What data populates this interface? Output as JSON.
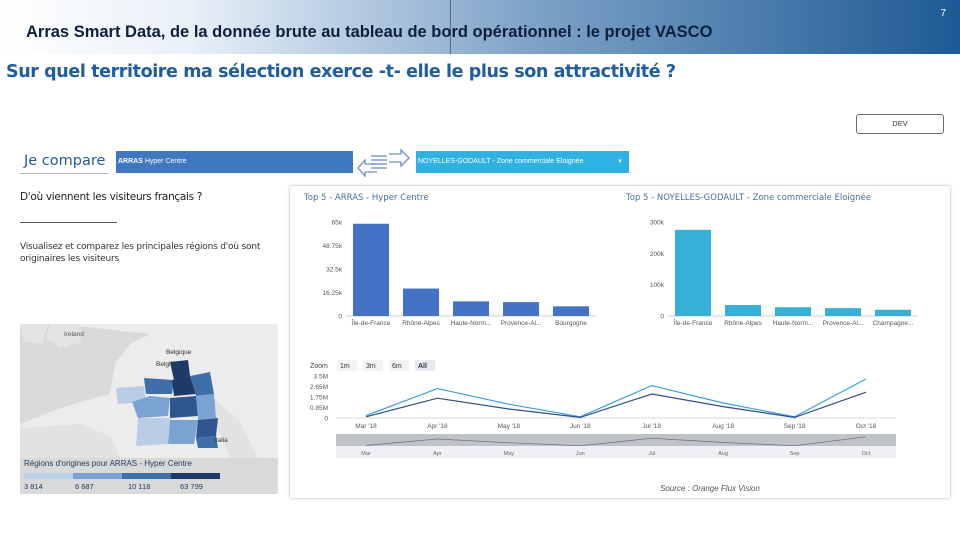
{
  "header": {
    "title": "Arras Smart Data,  de la donnée brute au tableau de bord opérationnel : le projet VASCO",
    "page_number": "7",
    "question": "Sur quel territoire ma sélection exerce -t- elle le plus son attractivité ?"
  },
  "env_badge": "DEV",
  "compare": {
    "label": "Je compare",
    "select_a_prefix": "ARRAS",
    "select_a_value": "Hyper Centre",
    "select_b_value": "NOYELLES-GODAULT - Zone commerciale Eloignée",
    "select_b_caret": "▼"
  },
  "left": {
    "heading": "D'où viennent les visiteurs français  ?",
    "description": "Visualisez et comparez les principales régions d'où sont originaires les visiteurs"
  },
  "map": {
    "labels": [
      "Ireland",
      "Belgique",
      "België",
      "Italia"
    ],
    "legend_title": "Régions d'origines pour ARRAS - Hyper Centre",
    "legend_values": [
      "3 814",
      "6 687",
      "10 118",
      "63 799"
    ],
    "legend_colors": [
      "#b9cde7",
      "#7aa2d2",
      "#3f6fa8",
      "#1e3a66"
    ]
  },
  "source": "Source : Orange Flux Vision",
  "colors": {
    "arras": "#4472c4",
    "noyelles": "#36b0d6",
    "line1": "#3aa0d8",
    "line2": "#2e4f8c"
  },
  "chart_data": [
    {
      "type": "bar",
      "title": "Top 5 - ARRAS - Hyper Centre",
      "categories": [
        "Île-de-France",
        "Rhône-Alpes",
        "Haute-Norm...",
        "Provence-Al...",
        "Bourgogne"
      ],
      "values": [
        63799,
        19000,
        10118,
        9600,
        6687
      ],
      "ytick_labels": [
        "0",
        "16.25k",
        "32.5k",
        "48.75k",
        "65k"
      ],
      "ylim": [
        0,
        65000
      ]
    },
    {
      "type": "bar",
      "title": "Top 5 - NOYELLES-GODAULT - Zone commerciale Eloignée",
      "categories": [
        "Île-de-France",
        "Rhône-Alpes",
        "Haute-Norm...",
        "Provence-Al...",
        "Champagne..."
      ],
      "values": [
        275000,
        35000,
        28000,
        25000,
        20000
      ],
      "ytick_labels": [
        "0",
        "100k",
        "200k",
        "300k"
      ],
      "ylim": [
        0,
        300000
      ]
    },
    {
      "type": "line",
      "zoom_label": "Zoom",
      "zoom_buttons": [
        "1m",
        "3m",
        "6m",
        "All"
      ],
      "zoom_active": "All",
      "categories": [
        "Mar '18",
        "Apr '18",
        "May '18",
        "Jun '18",
        "Jul '18",
        "Aug '18",
        "Sep '18",
        "Oct '18"
      ],
      "navigator_labels": [
        "Mar",
        "Apr",
        "May",
        "Jun",
        "Jul",
        "Aug",
        "Sep",
        "Oct"
      ],
      "ytick_labels": [
        "0",
        "0.85M",
        "1.75M",
        "2.65M",
        "3.5M"
      ],
      "ylim": [
        0,
        3500000
      ],
      "series": [
        {
          "values": [
            200000,
            2450000,
            1150000,
            100000,
            2700000,
            1250000,
            100000,
            3250000
          ]
        },
        {
          "values": [
            100000,
            1650000,
            750000,
            50000,
            2000000,
            950000,
            50000,
            2150000
          ]
        }
      ]
    }
  ]
}
